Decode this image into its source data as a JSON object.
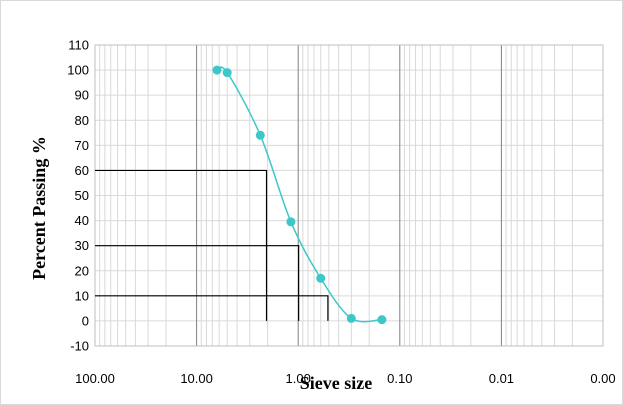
{
  "chart_data": {
    "type": "scatter",
    "xlabel": "Sieve size",
    "ylabel": "Percent Passing %",
    "x_scale": "log",
    "x_reversed": true,
    "xlim": [
      100,
      0.001
    ],
    "ylim": [
      -10,
      110
    ],
    "y_ticks": [
      -10,
      0,
      10,
      20,
      30,
      40,
      50,
      60,
      70,
      80,
      90,
      100,
      110
    ],
    "x_ticks": [
      {
        "value": 100,
        "label": "100.00"
      },
      {
        "value": 10,
        "label": "10.00"
      },
      {
        "value": 1,
        "label": "1.00"
      },
      {
        "value": 0.1,
        "label": "0.10"
      },
      {
        "value": 0.01,
        "label": "0.01"
      },
      {
        "value": 0.001,
        "label": "0.00"
      }
    ],
    "grid": true,
    "legend": "none",
    "series_color": "#3cc8c8",
    "points": [
      {
        "x": 6.3,
        "y": 100
      },
      {
        "x": 5.0,
        "y": 99
      },
      {
        "x": 2.36,
        "y": 74
      },
      {
        "x": 1.18,
        "y": 39.5
      },
      {
        "x": 0.6,
        "y": 17
      },
      {
        "x": 0.3,
        "y": 1
      },
      {
        "x": 0.15,
        "y": 0.5
      }
    ],
    "reference_lines": [
      {
        "percent": 60,
        "size": 2.05
      },
      {
        "percent": 30,
        "size": 0.99
      },
      {
        "percent": 10,
        "size": 0.51
      }
    ]
  }
}
